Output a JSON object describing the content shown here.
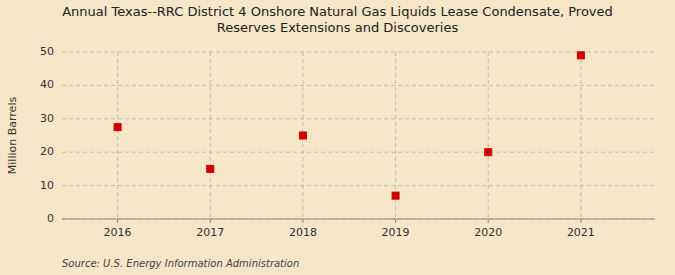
{
  "chart_data": {
    "type": "scatter",
    "title": "Annual Texas--RRC District 4 Onshore Natural Gas Liquids Lease Condensate, Proved\nReserves Extensions and Discoveries",
    "x": [
      2016,
      2017,
      2018,
      2019,
      2020,
      2021
    ],
    "values": [
      27.5,
      15.0,
      25.0,
      7.0,
      20.0,
      49.0
    ],
    "xlim": [
      2015.4,
      2021.8
    ],
    "xticks": [
      2016,
      2017,
      2018,
      2019,
      2020,
      2021
    ],
    "ylabel": "Million Barrels",
    "ylim": [
      0,
      50
    ],
    "yticks": [
      0,
      10,
      20,
      30,
      40,
      50
    ],
    "grid": true,
    "color": "#cc0000",
    "marker": "square",
    "annotation": "Source: U.S. Energy Information Administration"
  }
}
